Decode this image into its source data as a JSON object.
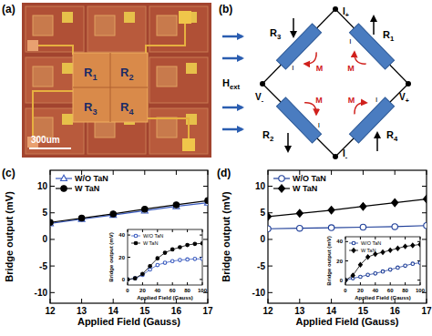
{
  "panels": {
    "a": {
      "label": "(a)",
      "resistors": [
        "R1",
        "R2",
        "R3",
        "R4"
      ],
      "scale_bar": "300um"
    },
    "b": {
      "label": "(b)",
      "nodes": {
        "top": "I+",
        "bottom": "I-",
        "left": "V-",
        "right": "V+"
      },
      "resistors": {
        "upper_left": "R3",
        "upper_right": "R1",
        "lower_left": "R2",
        "lower_right": "R4"
      },
      "field_label": "Hext",
      "magnetization_label": "M",
      "current_label": "I"
    }
  },
  "chart_data": [
    {
      "type": "line",
      "title": "(c)",
      "x_label": "Applied Field (Gauss)",
      "y_label": "Bridge output (mV)",
      "x": [
        12,
        13,
        14,
        15,
        16,
        17
      ],
      "xlim": [
        12,
        17
      ],
      "xticks": [
        12,
        13,
        14,
        15,
        16,
        17
      ],
      "ylim": [
        -12,
        13
      ],
      "yticks": [
        -10,
        -5,
        0,
        5,
        10
      ],
      "legend": "upper left",
      "series": [
        {
          "name": "W/O TaN",
          "color": "#3a5bbf",
          "marker": "triangle-open",
          "values": [
            3.0,
            3.8,
            4.6,
            5.4,
            6.2,
            6.9
          ]
        },
        {
          "name": "W TaN",
          "color": "#000000",
          "marker": "circle",
          "values": [
            3.2,
            4.0,
            4.8,
            5.7,
            6.5,
            7.3
          ]
        }
      ]
    },
    {
      "type": "line",
      "x_label": "Applied Field (Gauss)",
      "y_label": "Bridge output (mV)",
      "x": [
        0,
        10,
        20,
        30,
        40,
        50,
        60,
        70,
        80,
        90,
        100
      ],
      "xlim": [
        0,
        100
      ],
      "xticks": [
        0,
        20,
        40,
        60,
        80,
        100
      ],
      "ylim": [
        -5,
        45
      ],
      "yticks": [
        0,
        20,
        40
      ],
      "legend": "upper left",
      "series": [
        {
          "name": "W/O TaN",
          "color": "#3a5bbf",
          "marker": "circle-open",
          "values": [
            0,
            1,
            4,
            9,
            13,
            15,
            16.5,
            17.5,
            18,
            18.5,
            18.5
          ]
        },
        {
          "name": "W TaN",
          "color": "#000000",
          "marker": "circle",
          "values": [
            0,
            1,
            5,
            12,
            19,
            24,
            27,
            29,
            31,
            32,
            32.5
          ]
        }
      ]
    },
    {
      "type": "line",
      "title": "(d)",
      "x_label": "Applied Field (Gauss)",
      "y_label": "Bridge output (mV)",
      "x": [
        12,
        13,
        14,
        15,
        16,
        17
      ],
      "xlim": [
        12,
        17
      ],
      "xticks": [
        12,
        13,
        14,
        15,
        16,
        17
      ],
      "ylim": [
        -12,
        13
      ],
      "yticks": [
        -10,
        -5,
        0,
        5,
        10
      ],
      "legend": "upper left",
      "series": [
        {
          "name": "W/O TaN",
          "color": "#1f3f99",
          "marker": "circle-open",
          "values": [
            2.0,
            2.1,
            2.2,
            2.3,
            2.4,
            2.6
          ]
        },
        {
          "name": "W TaN",
          "color": "#000000",
          "marker": "diamond",
          "values": [
            4.3,
            4.9,
            5.5,
            6.2,
            6.9,
            7.6
          ]
        }
      ]
    },
    {
      "type": "line",
      "x_label": "Applied Field (Gauss)",
      "y_label": "Bridge output (mV)",
      "x": [
        0,
        10,
        20,
        30,
        40,
        50,
        60,
        70,
        80,
        90,
        100
      ],
      "xlim": [
        0,
        100
      ],
      "xticks": [
        0,
        20,
        40,
        60,
        80,
        100
      ],
      "ylim": [
        -5,
        45
      ],
      "yticks": [
        0,
        20,
        40
      ],
      "legend": "upper left",
      "series": [
        {
          "name": "W/O TaN",
          "color": "#1f3f99",
          "marker": "circle-open",
          "values": [
            0,
            2,
            3.5,
            5.5,
            7,
            9,
            11,
            13,
            15,
            17,
            18
          ]
        },
        {
          "name": "W TaN",
          "color": "#000000",
          "marker": "diamond",
          "values": [
            0,
            5,
            16,
            24,
            27,
            29,
            31,
            33,
            35,
            36,
            37
          ]
        }
      ]
    }
  ]
}
